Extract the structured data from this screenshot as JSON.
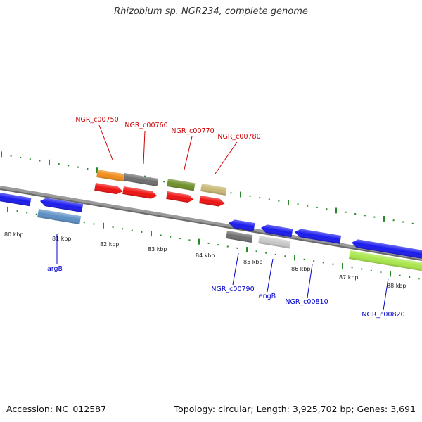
{
  "header": {
    "title": "Rhizobium sp. NGR234, complete genome"
  },
  "footer": {
    "accession": "Accession: NC_012587",
    "summary": "Topology: circular; Length: 3,925,702 bp; Genes: 3,691"
  },
  "colors": {
    "backbone": "#808080",
    "tick": "#2a8a2a",
    "label_red": "#cc0000",
    "label_blue": "#0000cc",
    "gene_blue": "#1a1aee",
    "gene_red": "#ee1111",
    "orange": "#f08c1a",
    "dark_gray": "#6e6e6e",
    "olive": "#6f8f2a",
    "khaki": "#c8b874",
    "steel_blue": "#5c8fc4",
    "light_gray": "#c8c8c8",
    "lime": "#a8e64a"
  },
  "axis": {
    "tick_labels": [
      "80 kbp",
      "81 kbp",
      "82 kbp",
      "83 kbp",
      "84 kbp",
      "85 kbp",
      "86 kbp",
      "87 kbp",
      "88 kbp"
    ]
  },
  "genes": {
    "upper_labels": [
      "NGR_c00750",
      "NGR_c00760",
      "NGR_c00770",
      "NGR_c00780"
    ],
    "lower_labels": [
      "argB",
      "NGR_c00790",
      "engB",
      "NGR_c00810",
      "NGR_c00820"
    ]
  }
}
